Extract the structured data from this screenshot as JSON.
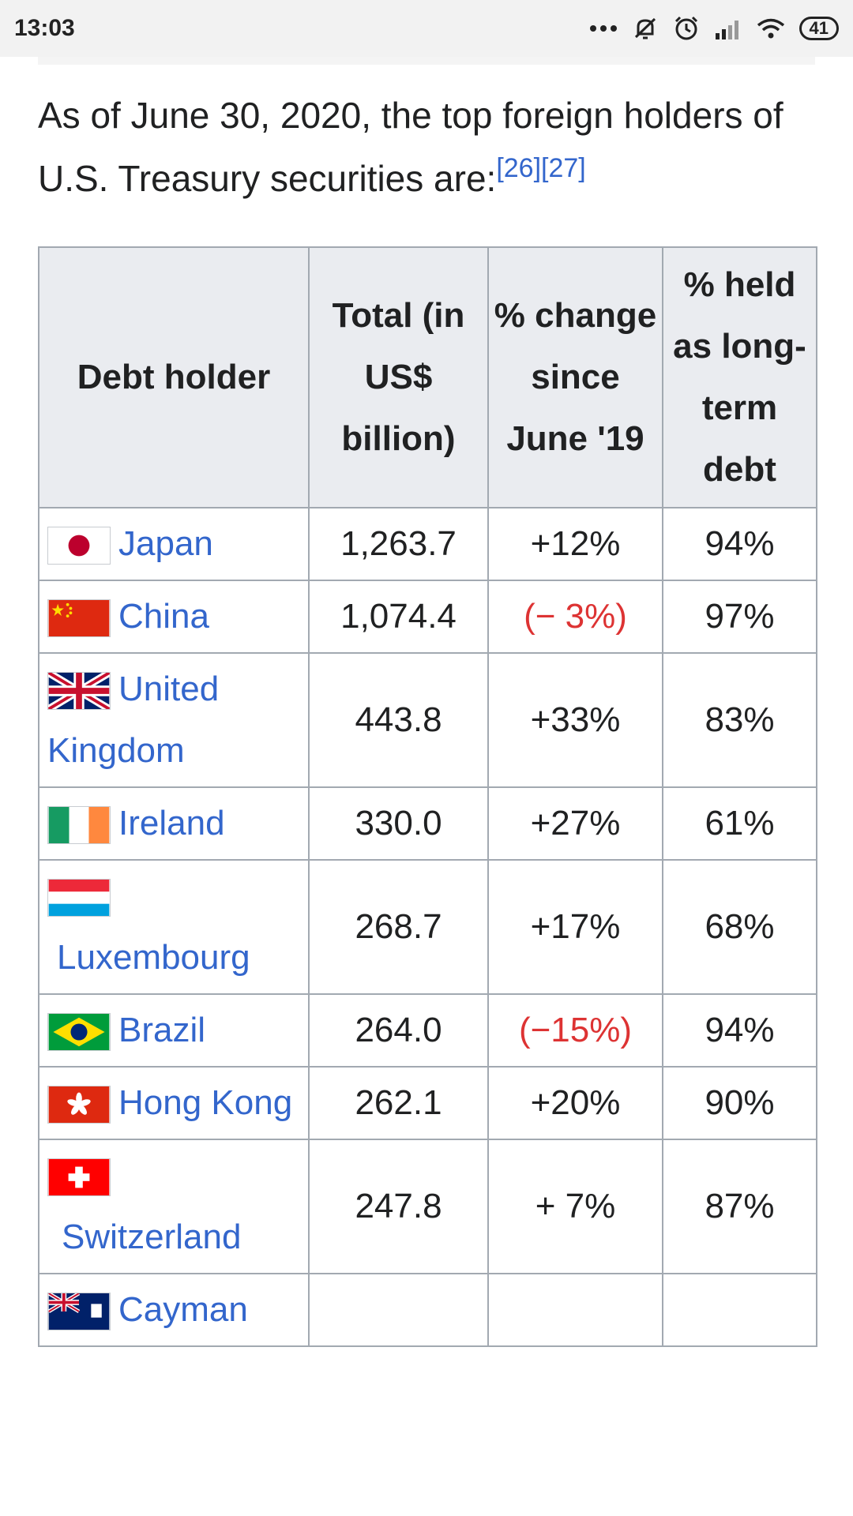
{
  "status_bar": {
    "time": "13:03",
    "battery": "41",
    "icons": [
      "more-dots-icon",
      "mute-icon",
      "alarm-icon",
      "signal-icon",
      "wifi-icon",
      "battery-icon"
    ]
  },
  "intro": {
    "text": "As of June 30, 2020, the top foreign holders of U.S. Treasury securities are:",
    "refs": "[26][27]"
  },
  "table": {
    "headers": [
      "Debt holder",
      "Total (in US$ billion)",
      "% change since June '19",
      "% held as long-term debt"
    ],
    "rows": [
      {
        "flag": "japan-flag-icon",
        "country": "Japan",
        "total": "1,263.7",
        "change": "+12%",
        "long_term": "94%"
      },
      {
        "flag": "china-flag-icon",
        "country": "China",
        "total": "1,074.4",
        "change": "(− 3%)",
        "long_term": "97%"
      },
      {
        "flag": "united-kingdom-flag-icon",
        "country": "United Kingdom",
        "total": "443.8",
        "change": "+33%",
        "long_term": "83%"
      },
      {
        "flag": "ireland-flag-icon",
        "country": "Ireland",
        "total": "330.0",
        "change": "+27%",
        "long_term": "61%"
      },
      {
        "flag": "luxembourg-flag-icon",
        "country": "Luxembourg",
        "total": "268.7",
        "change": "+17%",
        "long_term": "68%"
      },
      {
        "flag": "brazil-flag-icon",
        "country": "Brazil",
        "total": "264.0",
        "change": "(−15%)",
        "long_term": "94%"
      },
      {
        "flag": "hong-kong-flag-icon",
        "country": "Hong Kong",
        "total": "262.1",
        "change": "+20%",
        "long_term": "90%"
      },
      {
        "flag": "switzerland-flag-icon",
        "country": "Switzerland",
        "total": "247.8",
        "change": "+ 7%",
        "long_term": "87%"
      },
      {
        "flag": "cayman-islands-flag-icon",
        "country": "Cayman",
        "total": "",
        "change": "",
        "long_term": ""
      }
    ]
  },
  "colors": {
    "link": "#3366cc",
    "negative": "#dd3333",
    "header_bg": "#eaecf0",
    "border": "#a2a9b1"
  }
}
